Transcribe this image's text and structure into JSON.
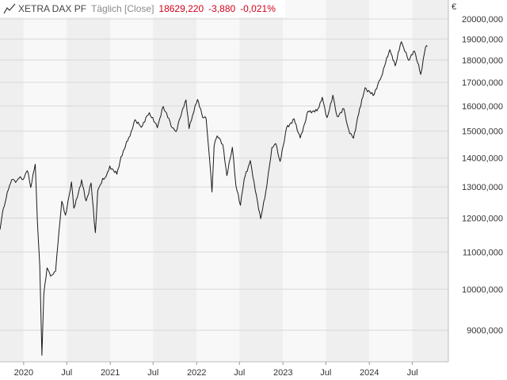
{
  "legend": {
    "name": "XETRA DAX PF",
    "period": "Täglich [Close]",
    "last_value": "18629,220",
    "change_abs": "-3,880",
    "change_pct": "-0,021%",
    "change_color": "#d0021b"
  },
  "currency": "€",
  "colors": {
    "band_light": "#f8f8f8",
    "band_dark": "#efefef",
    "grid": "#d8d8d8",
    "line": "#1a1a1a"
  },
  "chart_data": {
    "type": "line",
    "title": "XETRA DAX PF",
    "xlabel": "",
    "ylabel": "€",
    "y_scale": "log",
    "ylim": [
      8300,
      21000
    ],
    "xlim": [
      "2019-09-23",
      "2024-11-30"
    ],
    "y_ticks": [
      9000,
      10000,
      11000,
      12000,
      13000,
      14000,
      15000,
      16000,
      17000,
      18000,
      19000,
      20000
    ],
    "y_tick_labels": [
      "9000,000",
      "10000,000",
      "11000,000",
      "12000,000",
      "13000,000",
      "14000,000",
      "15000,000",
      "16000,000",
      "17000,000",
      "18000,000",
      "19000,000",
      "20000,000"
    ],
    "x_ticks": [
      {
        "date": "2020-01-01",
        "label": "2020"
      },
      {
        "date": "2020-07-01",
        "label": "Jul"
      },
      {
        "date": "2021-01-01",
        "label": "2021"
      },
      {
        "date": "2021-07-01",
        "label": "Jul"
      },
      {
        "date": "2022-01-01",
        "label": "2022"
      },
      {
        "date": "2022-07-01",
        "label": "Jul"
      },
      {
        "date": "2023-01-01",
        "label": "2023"
      },
      {
        "date": "2023-07-01",
        "label": "Jul"
      },
      {
        "date": "2024-01-01",
        "label": "2024"
      },
      {
        "date": "2024-07-01",
        "label": "Jul"
      }
    ],
    "grid": true,
    "series": [
      {
        "name": "XETRA DAX PF",
        "points": [
          [
            "2019-09-23",
            11650
          ],
          [
            "2019-10-03",
            12150
          ],
          [
            "2019-10-15",
            12500
          ],
          [
            "2019-10-28",
            12900
          ],
          [
            "2019-11-12",
            13250
          ],
          [
            "2019-11-28",
            13150
          ],
          [
            "2019-12-13",
            13300
          ],
          [
            "2019-12-30",
            13250
          ],
          [
            "2020-01-17",
            13550
          ],
          [
            "2020-01-31",
            12980
          ],
          [
            "2020-02-19",
            13780
          ],
          [
            "2020-02-28",
            11890
          ],
          [
            "2020-03-09",
            10630
          ],
          [
            "2020-03-18",
            8440
          ],
          [
            "2020-03-26",
            9870
          ],
          [
            "2020-04-09",
            10560
          ],
          [
            "2020-04-24",
            10340
          ],
          [
            "2020-05-15",
            10470
          ],
          [
            "2020-05-29",
            11590
          ],
          [
            "2020-06-10",
            12530
          ],
          [
            "2020-06-26",
            12090
          ],
          [
            "2020-07-21",
            13170
          ],
          [
            "2020-07-31",
            12310
          ],
          [
            "2020-08-20",
            12830
          ],
          [
            "2020-09-02",
            13240
          ],
          [
            "2020-09-21",
            12540
          ],
          [
            "2020-10-12",
            13130
          ],
          [
            "2020-10-30",
            11560
          ],
          [
            "2020-11-09",
            12880
          ],
          [
            "2020-11-30",
            13290
          ],
          [
            "2020-12-15",
            13360
          ],
          [
            "2020-12-30",
            13720
          ],
          [
            "2021-01-29",
            13430
          ],
          [
            "2021-02-16",
            14060
          ],
          [
            "2021-03-15",
            14620
          ],
          [
            "2021-03-31",
            15010
          ],
          [
            "2021-04-16",
            15450
          ],
          [
            "2021-05-12",
            15150
          ],
          [
            "2021-06-15",
            15730
          ],
          [
            "2021-07-19",
            15130
          ],
          [
            "2021-08-13",
            15980
          ],
          [
            "2021-09-20",
            15130
          ],
          [
            "2021-10-06",
            14980
          ],
          [
            "2021-10-29",
            15690
          ],
          [
            "2021-11-17",
            16250
          ],
          [
            "2021-11-30",
            15100
          ],
          [
            "2021-12-15",
            15620
          ],
          [
            "2022-01-05",
            16270
          ],
          [
            "2022-01-27",
            15520
          ],
          [
            "2022-02-10",
            15490
          ],
          [
            "2022-02-24",
            14050
          ],
          [
            "2022-03-07",
            12830
          ],
          [
            "2022-03-16",
            14440
          ],
          [
            "2022-03-29",
            14820
          ],
          [
            "2022-04-21",
            14500
          ],
          [
            "2022-05-09",
            13380
          ],
          [
            "2022-06-01",
            14390
          ],
          [
            "2022-06-16",
            13040
          ],
          [
            "2022-07-05",
            12400
          ],
          [
            "2022-07-21",
            13250
          ],
          [
            "2022-08-16",
            13910
          ],
          [
            "2022-09-06",
            12870
          ],
          [
            "2022-09-29",
            11980
          ],
          [
            "2022-10-25",
            13050
          ],
          [
            "2022-11-15",
            14380
          ],
          [
            "2022-12-01",
            14530
          ],
          [
            "2022-12-20",
            13880
          ],
          [
            "2023-01-16",
            15130
          ],
          [
            "2023-02-17",
            15480
          ],
          [
            "2023-03-15",
            14740
          ],
          [
            "2023-04-17",
            15790
          ],
          [
            "2023-05-25",
            15800
          ],
          [
            "2023-06-16",
            16360
          ],
          [
            "2023-07-06",
            15530
          ],
          [
            "2023-07-31",
            16450
          ],
          [
            "2023-08-18",
            15580
          ],
          [
            "2023-09-15",
            15890
          ],
          [
            "2023-10-05",
            15070
          ],
          [
            "2023-10-26",
            14730
          ],
          [
            "2023-11-21",
            15900
          ],
          [
            "2023-12-14",
            16770
          ],
          [
            "2024-01-17",
            16430
          ],
          [
            "2024-02-16",
            17120
          ],
          [
            "2024-03-28",
            18490
          ],
          [
            "2024-04-19",
            17740
          ],
          [
            "2024-05-15",
            18870
          ],
          [
            "2024-06-14",
            18000
          ],
          [
            "2024-07-10",
            18410
          ],
          [
            "2024-08-05",
            17350
          ],
          [
            "2024-08-26",
            18620
          ],
          [
            "2024-09-02",
            18640
          ]
        ]
      }
    ]
  }
}
